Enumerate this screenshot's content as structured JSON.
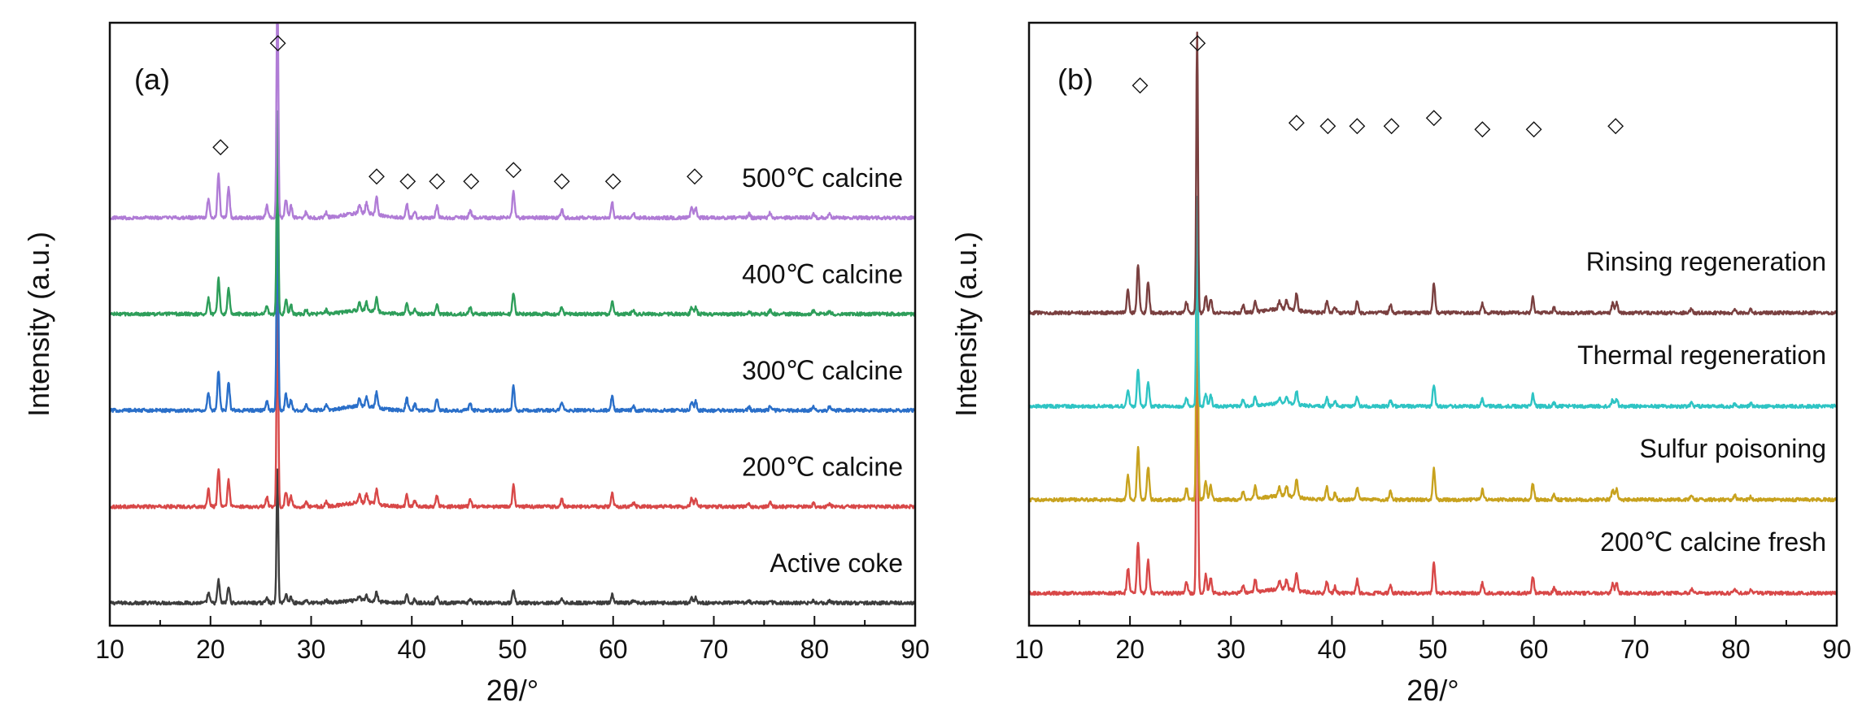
{
  "chart_data": [
    {
      "type": "line",
      "panel_label": "(a)",
      "xlabel": "2θ/°",
      "ylabel": "Intensity (a.u.)",
      "xlim": [
        10,
        90
      ],
      "xticks": [
        10,
        20,
        30,
        40,
        50,
        60,
        70,
        80,
        90
      ],
      "grid": false,
      "marker_symbol": "◇",
      "marker_positions": [
        21,
        26.7,
        36.5,
        39.6,
        42.5,
        45.9,
        50.1,
        54.9,
        60,
        68.1
      ],
      "peaks": [
        {
          "x": 19.8,
          "h": 0.2
        },
        {
          "x": 20.8,
          "h": 0.45
        },
        {
          "x": 21.8,
          "h": 0.32
        },
        {
          "x": 25.6,
          "h": 0.12
        },
        {
          "x": 26.65,
          "h": 2.6
        },
        {
          "x": 27.5,
          "h": 0.18
        },
        {
          "x": 28.0,
          "h": 0.12
        },
        {
          "x": 29.5,
          "h": 0.06
        },
        {
          "x": 31.5,
          "h": 0.05
        },
        {
          "x": 34.8,
          "h": 0.09
        },
        {
          "x": 35.5,
          "h": 0.1
        },
        {
          "x": 36.5,
          "h": 0.18
        },
        {
          "x": 39.5,
          "h": 0.14
        },
        {
          "x": 40.3,
          "h": 0.07
        },
        {
          "x": 42.5,
          "h": 0.13
        },
        {
          "x": 45.8,
          "h": 0.08
        },
        {
          "x": 50.1,
          "h": 0.27
        },
        {
          "x": 54.9,
          "h": 0.09
        },
        {
          "x": 59.9,
          "h": 0.16
        },
        {
          "x": 62,
          "h": 0.05
        },
        {
          "x": 67.8,
          "h": 0.1
        },
        {
          "x": 68.2,
          "h": 0.1
        },
        {
          "x": 73.5,
          "h": 0.04
        },
        {
          "x": 75.6,
          "h": 0.05
        },
        {
          "x": 79.9,
          "h": 0.04
        },
        {
          "x": 81.5,
          "h": 0.04
        }
      ],
      "series": [
        {
          "name": "Active coke",
          "color": "#3d3d3d",
          "offset": 0,
          "peak_scale": 0.52
        },
        {
          "name": "200℃ calcine",
          "color": "#d84848",
          "offset": 1,
          "peak_scale": 0.85
        },
        {
          "name": "300℃ calcine",
          "color": "#2a6fc9",
          "offset": 2,
          "peak_scale": 0.9
        },
        {
          "name": "400℃ calcine",
          "color": "#2e9e5a",
          "offset": 3,
          "peak_scale": 0.8
        },
        {
          "name": "500℃ calcine",
          "color": "#b07cd6",
          "offset": 4,
          "peak_scale": 1
        }
      ]
    },
    {
      "type": "line",
      "panel_label": "(b)",
      "xlabel": "2θ/°",
      "ylabel": "Intensity (a.u.)",
      "xlim": [
        10,
        90
      ],
      "xticks": [
        10,
        20,
        30,
        40,
        50,
        60,
        70,
        80,
        90
      ],
      "grid": false,
      "marker_symbol": "◇",
      "marker_positions": [
        21,
        26.7,
        36.5,
        39.6,
        42.5,
        45.9,
        50.1,
        54.9,
        60,
        68.1
      ],
      "peaks": [
        {
          "x": 19.8,
          "h": 0.3
        },
        {
          "x": 20.8,
          "h": 0.62
        },
        {
          "x": 21.8,
          "h": 0.4
        },
        {
          "x": 25.6,
          "h": 0.14
        },
        {
          "x": 26.65,
          "h": 3.6
        },
        {
          "x": 27.5,
          "h": 0.22
        },
        {
          "x": 28.0,
          "h": 0.18
        },
        {
          "x": 31.2,
          "h": 0.1
        },
        {
          "x": 32.4,
          "h": 0.15
        },
        {
          "x": 34.8,
          "h": 0.1
        },
        {
          "x": 35.5,
          "h": 0.12
        },
        {
          "x": 36.5,
          "h": 0.22
        },
        {
          "x": 39.5,
          "h": 0.15
        },
        {
          "x": 40.3,
          "h": 0.08
        },
        {
          "x": 42.5,
          "h": 0.16
        },
        {
          "x": 45.8,
          "h": 0.1
        },
        {
          "x": 50.1,
          "h": 0.38
        },
        {
          "x": 54.9,
          "h": 0.12
        },
        {
          "x": 59.9,
          "h": 0.2
        },
        {
          "x": 62,
          "h": 0.06
        },
        {
          "x": 67.8,
          "h": 0.12
        },
        {
          "x": 68.2,
          "h": 0.13
        },
        {
          "x": 75.6,
          "h": 0.05
        },
        {
          "x": 79.9,
          "h": 0.05
        },
        {
          "x": 81.5,
          "h": 0.04
        }
      ],
      "series": [
        {
          "name": "200℃ calcine fresh",
          "color": "#d84848",
          "offset": 0,
          "peak_scale": 0.85
        },
        {
          "name": "Sulfur poisoning",
          "color": "#c8a21e",
          "offset": 1,
          "peak_scale": 0.85
        },
        {
          "name": "Thermal regeneration",
          "color": "#2ec4c4",
          "offset": 2,
          "peak_scale": 0.6
        },
        {
          "name": "Rinsing regeneration",
          "color": "#7a4040",
          "offset": 3,
          "peak_scale": 0.8
        }
      ]
    }
  ]
}
